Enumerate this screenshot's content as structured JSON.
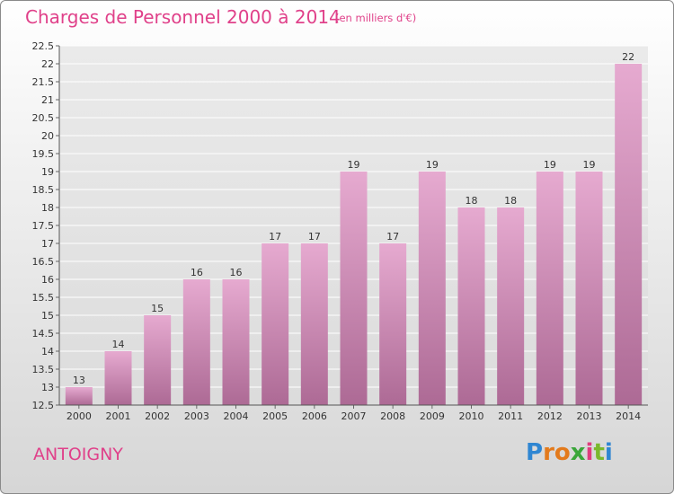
{
  "header": {
    "title": "Charges de Personnel 2000 à 2014",
    "subtitle": "(en milliers d'€)"
  },
  "footer": {
    "commune": "ANTOIGNY",
    "logo_text": "Proxiti"
  },
  "colors": {
    "accent": "#e0418a",
    "bar_top": "#e3a6cc",
    "bar_bottom": "#b06d98"
  },
  "chart_data": {
    "type": "bar",
    "title": "Charges de Personnel 2000 à 2014",
    "subtitle": "(en milliers d'€)",
    "categories": [
      "2000",
      "2001",
      "2002",
      "2003",
      "2004",
      "2005",
      "2006",
      "2007",
      "2008",
      "2009",
      "2010",
      "2011",
      "2012",
      "2013",
      "2014"
    ],
    "values": [
      13,
      14,
      15,
      16,
      16,
      17,
      17,
      19,
      17,
      19,
      18,
      18,
      19,
      19,
      22
    ],
    "data_labels": [
      "13",
      "14",
      "15",
      "16",
      "16",
      "17",
      "17",
      "19",
      "17",
      "19",
      "18",
      "18",
      "19",
      "19",
      "22"
    ],
    "y_ticks": [
      "12.5",
      "13",
      "13.5",
      "14",
      "14.5",
      "15",
      "15.5",
      "16",
      "16.5",
      "17",
      "17.5",
      "18",
      "18.5",
      "19",
      "19.5",
      "20",
      "20.5",
      "21",
      "21.5",
      "22",
      "22.5"
    ],
    "ylim": [
      12.5,
      22.5
    ],
    "grid": true,
    "xlabel": "",
    "ylabel": ""
  }
}
